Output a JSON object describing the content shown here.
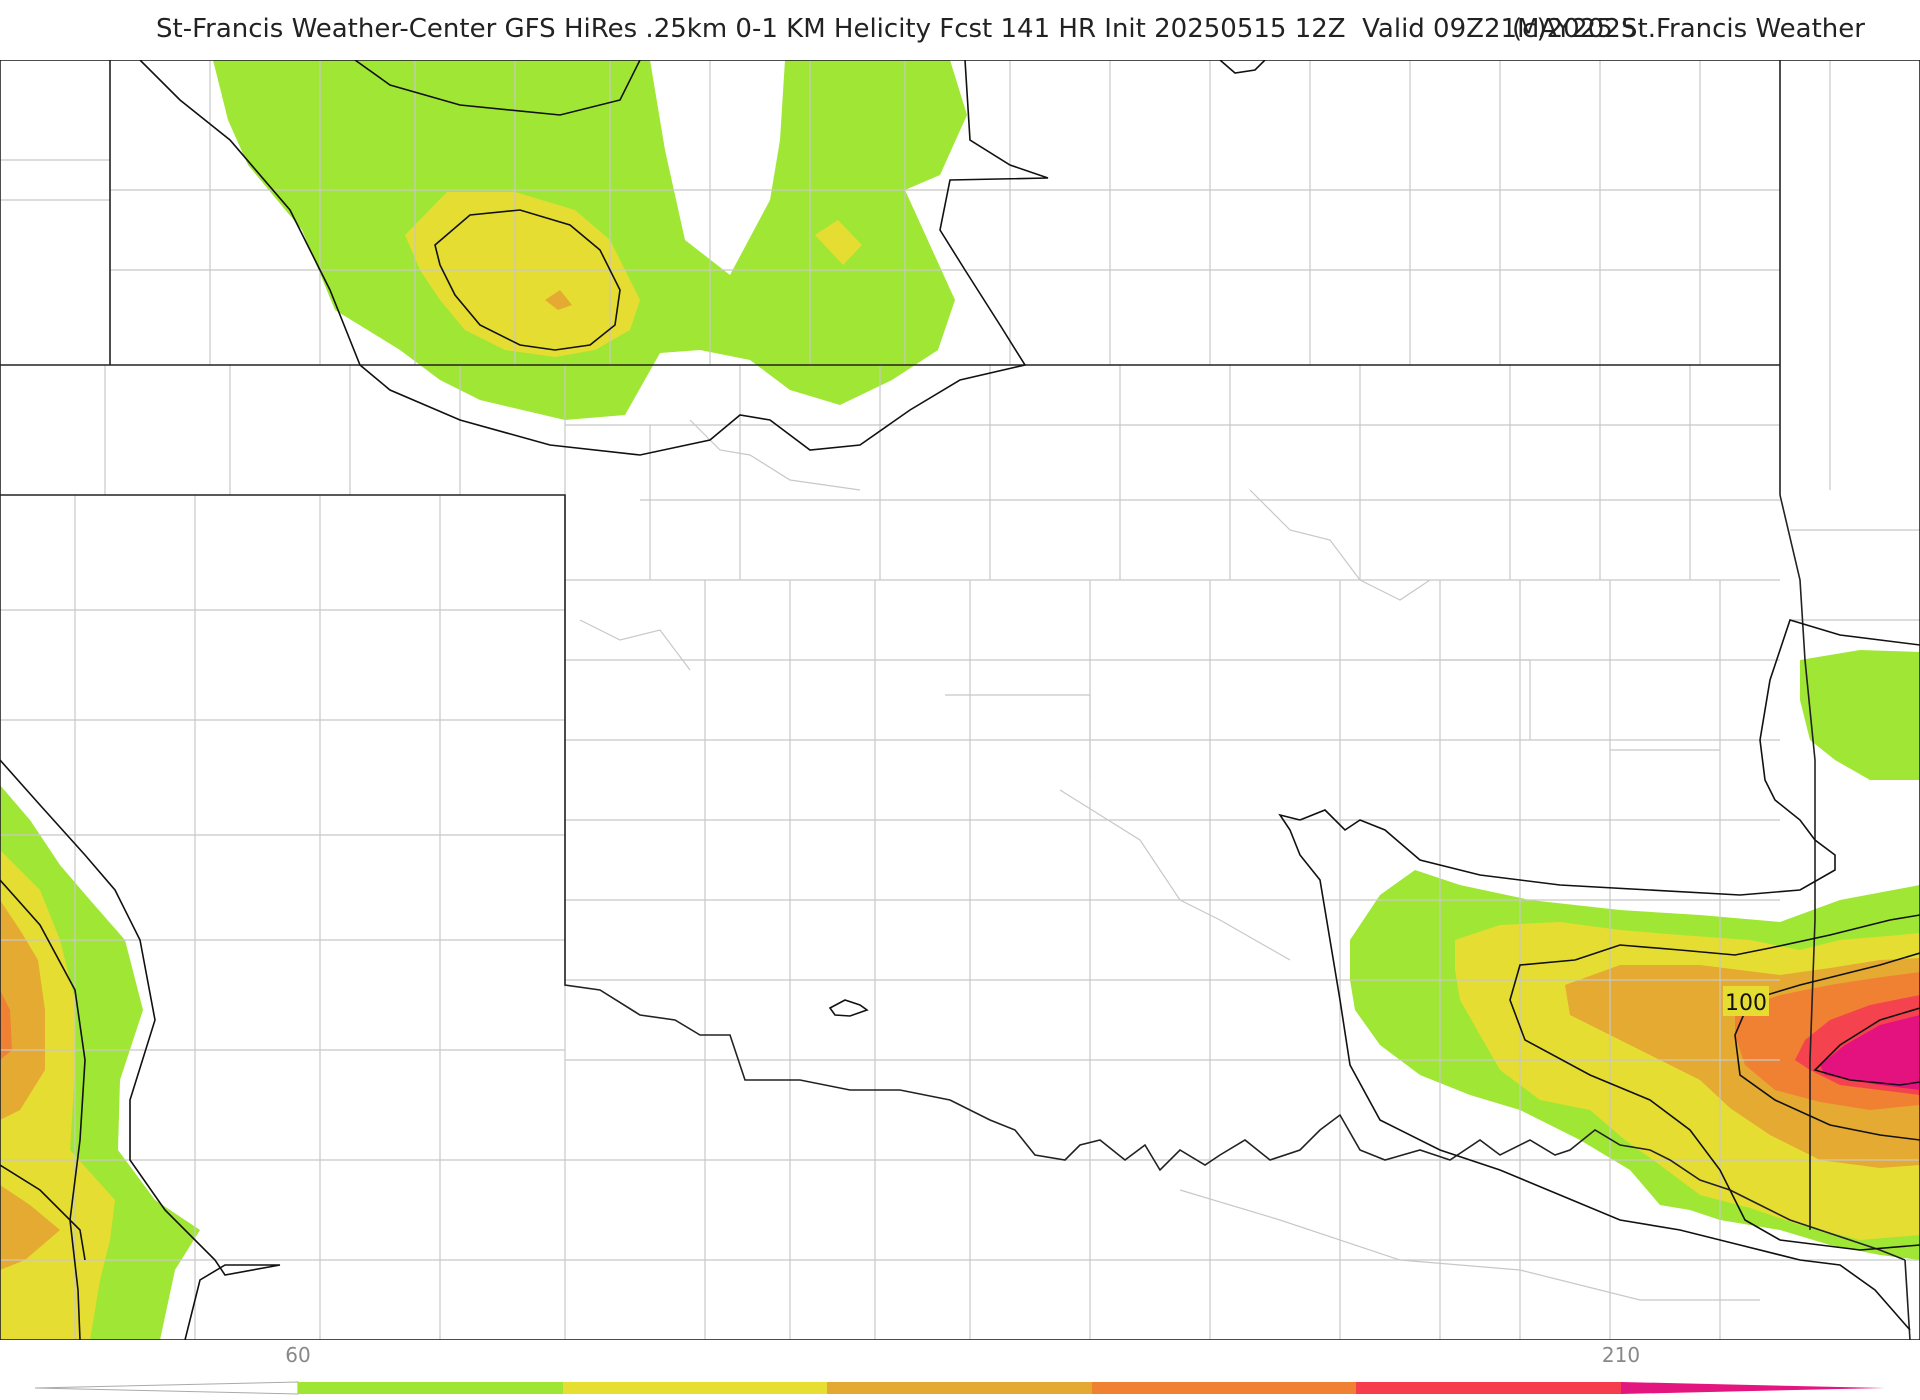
{
  "header": {
    "title": "St-Francis Weather-Center GFS HiRes .25km 0-1 KM Helicity Fcst 141 HR Init 20250515 12Z  Valid 09Z21MAY2025",
    "copyright": "(c)2025 St.Francis Weather"
  },
  "map": {
    "contour_label": "100"
  },
  "colorbar": {
    "tick_labels": [
      "60",
      "210"
    ],
    "colors": [
      "#9fe634",
      "#e6de33",
      "#e4a932",
      "#f08032",
      "#f53d4e",
      "#e3157f"
    ],
    "under_color": "#ffffff"
  },
  "colors": {
    "border": "#222222",
    "county_line": "#c8c8c8",
    "green": "#a0e634",
    "yellow": "#e6dd33",
    "orange_light": "#e4aa32",
    "orange": "#f08032",
    "red": "#f5424f",
    "magenta": "#e3127e"
  }
}
